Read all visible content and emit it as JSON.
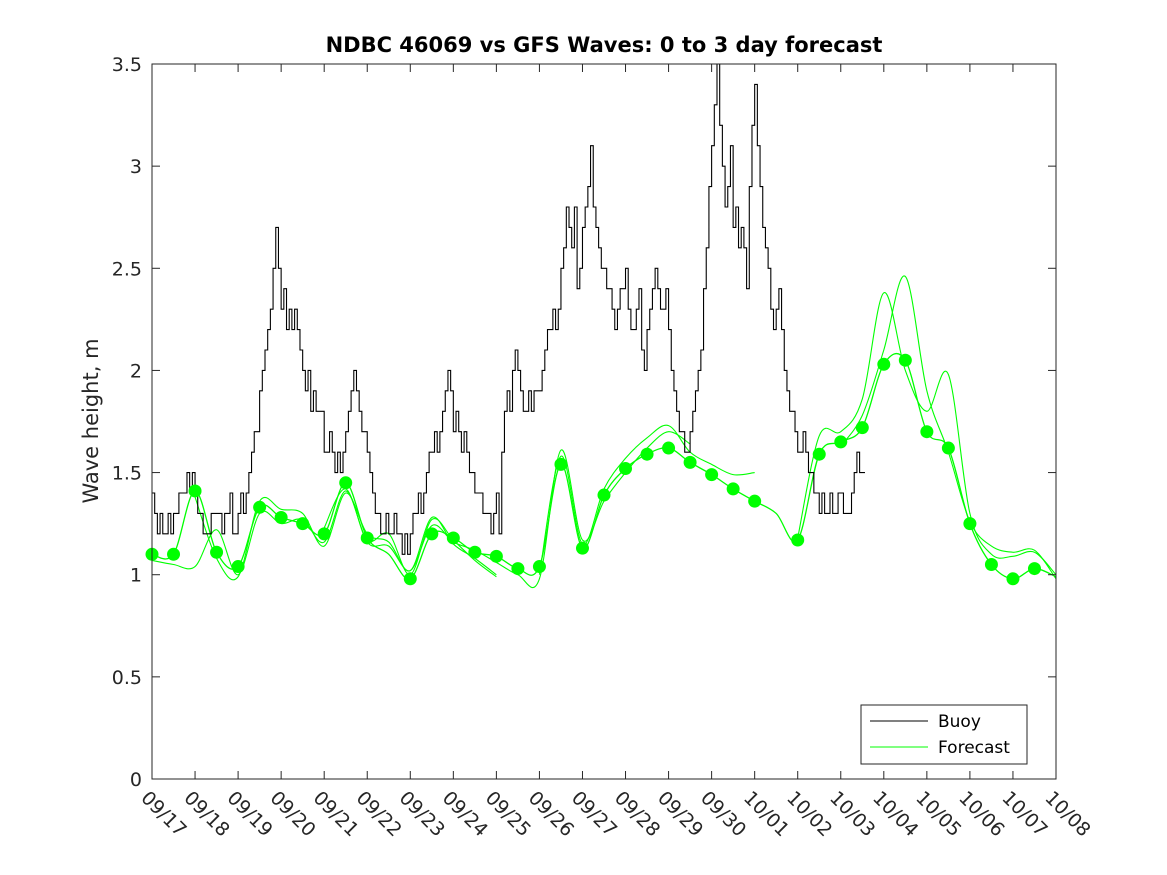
{
  "chart_data": {
    "type": "line",
    "title": "NDBC 46069 vs GFS Waves: 0 to 3 day forecast",
    "xlabel": "",
    "ylabel": "Wave height, m",
    "xlim": [
      0,
      21
    ],
    "ylim": [
      0,
      3.5
    ],
    "yticks": [
      0,
      0.5,
      1,
      1.5,
      2,
      2.5,
      3,
      3.5
    ],
    "ytick_labels": [
      "0",
      "0.5",
      "1",
      "1.5",
      "2",
      "2.5",
      "3",
      "3.5"
    ],
    "xtick_labels": [
      "09/17",
      "09/18",
      "09/19",
      "09/20",
      "09/21",
      "09/22",
      "09/23",
      "09/24",
      "09/25",
      "09/26",
      "09/27",
      "09/28",
      "09/29",
      "09/30",
      "10/01",
      "10/02",
      "10/03",
      "10/04",
      "10/05",
      "10/06",
      "10/07",
      "10/08"
    ],
    "legend": {
      "location": "bottom-right",
      "entries": [
        "Buoy",
        "Forecast"
      ]
    },
    "colors": {
      "buoy": "#000000",
      "forecast": "#00ff00",
      "axes": "#262626"
    },
    "series": [
      {
        "name": "Buoy",
        "x_step_days": 0.0625,
        "x_start": 0,
        "values": [
          1.4,
          1.3,
          1.2,
          1.3,
          1.2,
          1.2,
          1.3,
          1.2,
          1.3,
          1.3,
          1.4,
          1.4,
          1.4,
          1.5,
          1.4,
          1.5,
          1.4,
          1.3,
          1.3,
          1.2,
          1.2,
          1.2,
          1.3,
          1.3,
          1.3,
          1.3,
          1.2,
          1.3,
          1.3,
          1.4,
          1.2,
          1.2,
          1.3,
          1.4,
          1.3,
          1.4,
          1.5,
          1.6,
          1.7,
          1.7,
          1.9,
          2.0,
          2.1,
          2.2,
          2.3,
          2.5,
          2.7,
          2.5,
          2.3,
          2.4,
          2.2,
          2.3,
          2.2,
          2.3,
          2.2,
          2.1,
          2.0,
          1.9,
          2.0,
          1.8,
          1.9,
          1.8,
          1.8,
          1.8,
          1.6,
          1.6,
          1.7,
          1.6,
          1.5,
          1.6,
          1.5,
          1.6,
          1.7,
          1.8,
          1.9,
          2.0,
          1.9,
          1.8,
          1.7,
          1.7,
          1.6,
          1.5,
          1.4,
          1.3,
          1.3,
          1.2,
          1.2,
          1.3,
          1.2,
          1.2,
          1.3,
          1.2,
          1.2,
          1.1,
          1.2,
          1.1,
          1.2,
          1.3,
          1.3,
          1.4,
          1.3,
          1.4,
          1.5,
          1.6,
          1.6,
          1.7,
          1.6,
          1.7,
          1.8,
          1.9,
          2.0,
          1.9,
          1.7,
          1.8,
          1.7,
          1.6,
          1.7,
          1.6,
          1.5,
          1.5,
          1.4,
          1.4,
          1.4,
          1.3,
          1.3,
          1.3,
          1.2,
          1.3,
          1.4,
          1.2,
          1.6,
          1.8,
          1.9,
          1.8,
          2.0,
          2.1,
          2.0,
          1.9,
          1.8,
          1.8,
          1.9,
          1.8,
          1.9,
          1.9,
          1.9,
          2.0,
          2.1,
          2.2,
          2.2,
          2.3,
          2.2,
          2.3,
          2.5,
          2.6,
          2.8,
          2.7,
          2.6,
          2.8,
          2.4,
          2.5,
          2.7,
          2.8,
          2.9,
          3.1,
          2.8,
          2.7,
          2.6,
          2.5,
          2.5,
          2.4,
          2.4,
          2.3,
          2.2,
          2.3,
          2.4,
          2.4,
          2.5,
          2.3,
          2.2,
          2.2,
          2.3,
          2.4,
          2.1,
          2.0,
          2.2,
          2.3,
          2.4,
          2.5,
          2.4,
          2.3,
          2.3,
          2.4,
          2.2,
          2.0,
          1.9,
          1.8,
          1.7,
          1.7,
          1.6,
          1.6,
          1.7,
          1.8,
          1.9,
          2.0,
          2.1,
          2.4,
          2.6,
          2.9,
          3.1,
          3.3,
          3.5,
          3.2,
          3.0,
          2.8,
          2.9,
          3.1,
          2.7,
          2.8,
          2.6,
          2.7,
          2.6,
          2.4,
          2.9,
          3.2,
          3.4,
          3.1,
          2.9,
          2.7,
          2.6,
          2.5,
          2.3,
          2.2,
          2.3,
          2.4,
          2.2,
          2.0,
          1.9,
          1.8,
          1.8,
          1.7,
          1.6,
          1.6,
          1.7,
          1.6,
          1.5,
          1.5,
          1.4,
          1.4,
          1.3,
          1.4,
          1.3,
          1.3,
          1.4,
          1.3,
          1.3,
          1.4,
          1.4,
          1.3,
          1.3,
          1.3,
          1.4,
          1.5,
          1.6,
          1.5,
          1.5
        ]
      },
      {
        "name": "Forecast",
        "x": [
          0.0,
          0.5,
          1.0,
          1.5,
          2.0,
          2.5,
          3.0,
          3.5,
          4.0,
          4.5,
          5.0,
          5.5,
          6.0,
          6.5,
          7.0,
          7.5,
          8.0,
          8.5,
          9.0,
          9.5,
          10.0,
          10.5,
          11.0,
          11.5,
          12.0,
          12.5,
          13.0,
          13.5,
          14.0,
          14.5,
          15.0,
          15.5,
          16.0,
          16.5,
          17.0,
          17.5,
          18.0,
          18.5,
          19.0,
          19.5,
          20.0,
          20.5,
          21.0
        ],
        "values": [
          1.1,
          1.1,
          1.41,
          1.11,
          1.04,
          1.33,
          1.28,
          1.25,
          1.2,
          1.45,
          1.18,
          1.1,
          0.98,
          1.2,
          1.18,
          1.11,
          1.09,
          1.03,
          1.04,
          1.54,
          1.13,
          1.39,
          1.52,
          1.59,
          1.62,
          1.55,
          1.49,
          1.42,
          1.36,
          1.3,
          1.17,
          1.59,
          1.65,
          1.72,
          2.03,
          2.05,
          1.7,
          1.62,
          1.25,
          1.05,
          0.98,
          1.03,
          0.99
        ],
        "markers": [
          1.1,
          1.1,
          1.41,
          1.11,
          1.04,
          1.33,
          1.28,
          1.25,
          1.2,
          1.45,
          1.18,
          null,
          0.98,
          1.2,
          1.18,
          1.11,
          1.09,
          1.03,
          1.04,
          1.54,
          1.13,
          1.39,
          1.52,
          1.59,
          1.62,
          1.55,
          1.49,
          1.42,
          1.36,
          null,
          1.17,
          1.59,
          1.65,
          1.72,
          2.03,
          2.05,
          1.7,
          1.62,
          1.25,
          1.05,
          0.98,
          1.03,
          null
        ],
        "runs": [
          {
            "start_index": 0,
            "values": [
              1.07,
              1.05,
              1.04,
              1.22,
              1.0,
              1.3,
              1.25,
              1.27,
              1.16,
              1.41,
              1.17,
              1.2,
              1.0,
              1.27,
              1.17,
              1.07,
              0.99
            ]
          },
          {
            "start_index": 2,
            "values": [
              1.38,
              1.08,
              0.99,
              1.36,
              1.32,
              1.3,
              1.14,
              1.4,
              1.2,
              1.16,
              1.02,
              1.28,
              1.15,
              1.08,
              1.0
            ]
          },
          {
            "start_index": 8,
            "values": [
              1.23,
              1.42,
              1.16,
              1.14,
              1.02,
              1.24,
              1.16,
              1.12,
              1.06,
              1.0,
              0.98,
              1.61,
              1.17,
              1.36,
              1.5,
              1.62,
              1.7,
              1.64
            ]
          },
          {
            "start_index": 18,
            "values": [
              1.0,
              1.58,
              1.15,
              1.42,
              1.57,
              1.67,
              1.73,
              1.6,
              1.54,
              1.49,
              1.5
            ]
          },
          {
            "start_index": 30,
            "values": [
              1.18,
              1.68,
              1.7,
              1.86,
              2.38,
              2.0,
              1.8,
              1.98,
              1.3,
              1.1,
              1.09,
              1.11,
              1.0
            ]
          },
          {
            "start_index": 32,
            "values": [
              1.63,
              1.78,
              2.1,
              2.46,
              1.9,
              1.6,
              1.26,
              1.14,
              1.11,
              1.12,
              0.98
            ]
          }
        ]
      }
    ]
  }
}
